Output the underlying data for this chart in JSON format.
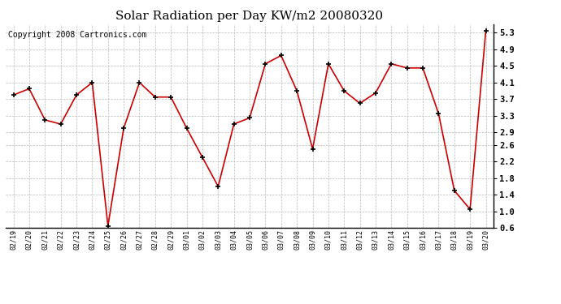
{
  "title": "Solar Radiation per Day KW/m2 20080320",
  "copyright": "Copyright 2008 Cartronics.com",
  "dates": [
    "02/19",
    "02/20",
    "02/21",
    "02/22",
    "02/23",
    "02/24",
    "02/25",
    "02/26",
    "02/27",
    "02/28",
    "02/29",
    "03/01",
    "03/02",
    "03/03",
    "03/04",
    "03/05",
    "03/06",
    "03/07",
    "03/08",
    "03/09",
    "03/10",
    "03/11",
    "03/12",
    "03/13",
    "03/14",
    "03/15",
    "03/16",
    "03/17",
    "03/18",
    "03/19",
    "03/20"
  ],
  "values": [
    3.8,
    3.95,
    3.2,
    3.1,
    3.8,
    4.1,
    0.65,
    3.0,
    4.1,
    3.75,
    3.75,
    3.0,
    2.3,
    1.6,
    3.1,
    3.25,
    4.55,
    4.75,
    3.9,
    2.5,
    4.55,
    3.9,
    3.6,
    3.85,
    4.55,
    4.45,
    4.45,
    3.35,
    1.5,
    1.05,
    5.35
  ],
  "line_color": "#cc0000",
  "marker": "+",
  "marker_size": 5,
  "marker_color": "#000000",
  "ylim": [
    0.6,
    5.5
  ],
  "yticks": [
    5.3,
    4.9,
    4.5,
    4.1,
    3.7,
    3.3,
    2.9,
    2.6,
    2.2,
    1.8,
    1.4,
    1.0,
    0.6
  ],
  "ytick_labels": [
    "5.3",
    "4.9",
    "4.5",
    "4.1",
    "3.7",
    "3.3",
    "2.9",
    "2.6",
    "2.2",
    "1.8",
    "1.4",
    "1.0",
    "0.6"
  ],
  "bg_color": "#ffffff",
  "grid_color": "#bbbbbb",
  "title_fontsize": 11,
  "copyright_fontsize": 7
}
